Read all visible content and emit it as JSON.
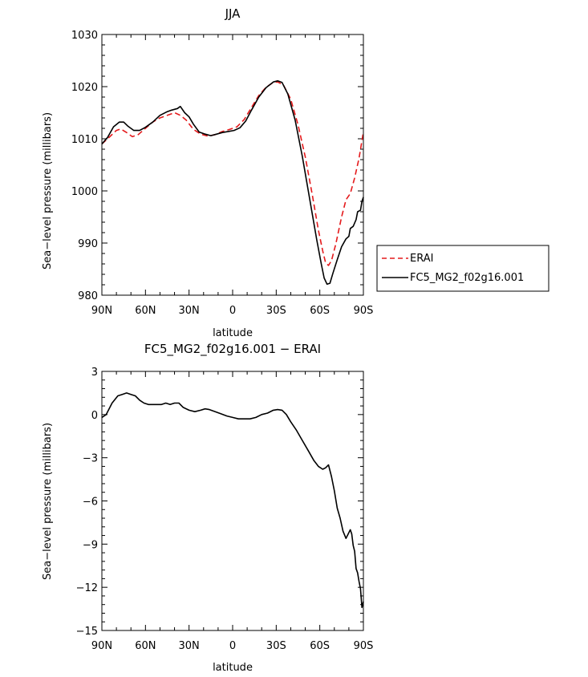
{
  "chart_data": [
    {
      "type": "line",
      "title": "JJA",
      "xlabel": "latitude",
      "ylabel": "Sea−level pressure (millibars)",
      "xlim": [
        90,
        -90
      ],
      "ylim": [
        980,
        1030
      ],
      "x_ticks": [
        90,
        60,
        30,
        0,
        -30,
        -60,
        -90
      ],
      "x_tick_labels": [
        "90N",
        "60N",
        "30N",
        "0",
        "30S",
        "60S",
        "90S"
      ],
      "y_ticks": [
        980,
        990,
        1000,
        1010,
        1020,
        1030
      ],
      "y_tick_labels": [
        "980",
        "990",
        "1000",
        "1010",
        "1020",
        "1030"
      ],
      "legend_position": "right",
      "series": [
        {
          "name": "ERAI",
          "color": "#e41a1c",
          "dash": "dashed",
          "points": [
            [
              90,
              1009
            ],
            [
              85,
              1010.3
            ],
            [
              80,
              1011.6
            ],
            [
              77,
              1011.9
            ],
            [
              73,
              1011.2
            ],
            [
              69,
              1010.4
            ],
            [
              65,
              1010.8
            ],
            [
              60,
              1012
            ],
            [
              55,
              1013.2
            ],
            [
              50,
              1014
            ],
            [
              45,
              1014.5
            ],
            [
              40,
              1015
            ],
            [
              36,
              1014.5
            ],
            [
              32,
              1013.6
            ],
            [
              27,
              1011.8
            ],
            [
              22,
              1010.9
            ],
            [
              17,
              1010.5
            ],
            [
              12,
              1010.8
            ],
            [
              7,
              1011.4
            ],
            [
              2,
              1011.8
            ],
            [
              -3,
              1012.3
            ],
            [
              -8,
              1013.7
            ],
            [
              -13,
              1016
            ],
            [
              -18,
              1018.3
            ],
            [
              -23,
              1019.9
            ],
            [
              -28,
              1020.8
            ],
            [
              -31,
              1020.9
            ],
            [
              -35,
              1020.3
            ],
            [
              -40,
              1017.6
            ],
            [
              -45,
              1012.7
            ],
            [
              -50,
              1006.5
            ],
            [
              -55,
              999
            ],
            [
              -59,
              992.5
            ],
            [
              -62,
              988.5
            ],
            [
              -64,
              986.2
            ],
            [
              -66,
              985.7
            ],
            [
              -68,
              986.6
            ],
            [
              -71,
              989.8
            ],
            [
              -75,
              995
            ],
            [
              -78,
              998.3
            ],
            [
              -81,
              999.5
            ],
            [
              -84,
              1002.5
            ],
            [
              -87,
              1006.3
            ],
            [
              -90,
              1011.3
            ]
          ]
        },
        {
          "name": "FC5_MG2_f02g16.001",
          "color": "#000000",
          "dash": "solid",
          "points": [
            [
              90,
              1009
            ],
            [
              86,
              1010.3
            ],
            [
              82,
              1012.3
            ],
            [
              78,
              1013.2
            ],
            [
              75,
              1013.2
            ],
            [
              72,
              1012.4
            ],
            [
              68,
              1011.6
            ],
            [
              64,
              1011.6
            ],
            [
              60,
              1012.2
            ],
            [
              55,
              1013.2
            ],
            [
              50,
              1014.5
            ],
            [
              45,
              1015.2
            ],
            [
              42,
              1015.5
            ],
            [
              38,
              1015.8
            ],
            [
              36,
              1016.2
            ],
            [
              33,
              1015
            ],
            [
              30,
              1014.2
            ],
            [
              27,
              1012.8
            ],
            [
              23,
              1011.3
            ],
            [
              19,
              1010.9
            ],
            [
              15,
              1010.6
            ],
            [
              11,
              1010.9
            ],
            [
              7,
              1011.2
            ],
            [
              3,
              1011.4
            ],
            [
              -1,
              1011.6
            ],
            [
              -5,
              1012.1
            ],
            [
              -9,
              1013.4
            ],
            [
              -13,
              1015.5
            ],
            [
              -18,
              1018
            ],
            [
              -23,
              1019.8
            ],
            [
              -28,
              1020.9
            ],
            [
              -31,
              1021.1
            ],
            [
              -34,
              1020.8
            ],
            [
              -38,
              1018.6
            ],
            [
              -43,
              1013.6
            ],
            [
              -48,
              1006.6
            ],
            [
              -53,
              998.5
            ],
            [
              -58,
              990.5
            ],
            [
              -61,
              986
            ],
            [
              -63,
              983.3
            ],
            [
              -65,
              982.1
            ],
            [
              -67,
              982.3
            ],
            [
              -69,
              984.2
            ],
            [
              -72,
              986.8
            ],
            [
              -75,
              989.3
            ],
            [
              -78,
              990.8
            ],
            [
              -80,
              991.3
            ],
            [
              -81,
              992.8
            ],
            [
              -83,
              993.2
            ],
            [
              -85,
              994.5
            ],
            [
              -86,
              996
            ],
            [
              -88,
              996.3
            ],
            [
              -89,
              998
            ],
            [
              -90,
              998.8
            ]
          ]
        }
      ]
    },
    {
      "type": "line",
      "title": "FC5_MG2_f02g16.001 − ERAI",
      "xlabel": "latitude",
      "ylabel": "Sea−level pressure (millibars)",
      "xlim": [
        90,
        -90
      ],
      "ylim": [
        -15,
        3
      ],
      "x_ticks": [
        90,
        60,
        30,
        0,
        -30,
        -60,
        -90
      ],
      "x_tick_labels": [
        "90N",
        "60N",
        "30N",
        "0",
        "30S",
        "60S",
        "90S"
      ],
      "y_ticks": [
        -15,
        -12,
        -9,
        -6,
        -3,
        0,
        3
      ],
      "y_tick_labels": [
        "−15",
        "−12",
        "−9",
        "−6",
        "−3",
        "0",
        "3"
      ],
      "series": [
        {
          "color": "#000000",
          "dash": "solid",
          "points": [
            [
              90,
              -0.2
            ],
            [
              87,
              0
            ],
            [
              83,
              0.8
            ],
            [
              79,
              1.3
            ],
            [
              76,
              1.4
            ],
            [
              73,
              1.5
            ],
            [
              70,
              1.4
            ],
            [
              67,
              1.3
            ],
            [
              64,
              1.0
            ],
            [
              61,
              0.8
            ],
            [
              58,
              0.7
            ],
            [
              55,
              0.7
            ],
            [
              52,
              0.7
            ],
            [
              49,
              0.7
            ],
            [
              46,
              0.8
            ],
            [
              43,
              0.7
            ],
            [
              40,
              0.8
            ],
            [
              37,
              0.8
            ],
            [
              34,
              0.5
            ],
            [
              30,
              0.3
            ],
            [
              26,
              0.2
            ],
            [
              22,
              0.3
            ],
            [
              19,
              0.4
            ],
            [
              16,
              0.35
            ],
            [
              12,
              0.2
            ],
            [
              8,
              0.05
            ],
            [
              4,
              -0.1
            ],
            [
              0,
              -0.2
            ],
            [
              -4,
              -0.3
            ],
            [
              -8,
              -0.3
            ],
            [
              -12,
              -0.3
            ],
            [
              -16,
              -0.2
            ],
            [
              -20,
              0
            ],
            [
              -24,
              0.1
            ],
            [
              -28,
              0.3
            ],
            [
              -31,
              0.35
            ],
            [
              -34,
              0.3
            ],
            [
              -37,
              0
            ],
            [
              -40,
              -0.5
            ],
            [
              -44,
              -1.1
            ],
            [
              -48,
              -1.8
            ],
            [
              -52,
              -2.5
            ],
            [
              -56,
              -3.2
            ],
            [
              -59,
              -3.6
            ],
            [
              -62,
              -3.8
            ],
            [
              -64,
              -3.7
            ],
            [
              -66,
              -3.5
            ],
            [
              -68,
              -4.3
            ],
            [
              -70,
              -5.3
            ],
            [
              -72,
              -6.5
            ],
            [
              -74,
              -7.2
            ],
            [
              -76,
              -8.1
            ],
            [
              -78,
              -8.6
            ],
            [
              -80,
              -8.2
            ],
            [
              -81,
              -8.0
            ],
            [
              -82,
              -8.3
            ],
            [
              -83,
              -9.1
            ],
            [
              -84,
              -9.5
            ],
            [
              -85,
              -10.7
            ],
            [
              -86,
              -11.0
            ],
            [
              -87,
              -11.6
            ],
            [
              -88,
              -12.1
            ],
            [
              -89,
              -13.4
            ],
            [
              -90,
              -13.0
            ]
          ]
        }
      ]
    }
  ]
}
